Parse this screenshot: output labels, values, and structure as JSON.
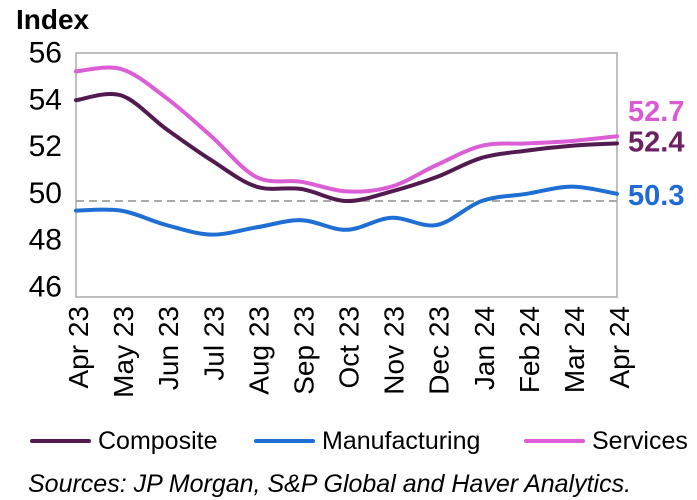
{
  "title": "Index",
  "source": "Sources: JP Morgan, S&P Global and Haver Analytics.",
  "legend": {
    "items": [
      {
        "label": "Composite",
        "color": "#521B50"
      },
      {
        "label": "Manufacturing",
        "color": "#1F6ED4"
      },
      {
        "label": "Services",
        "color": "#DB5ED6"
      }
    ]
  },
  "chart_data": {
    "type": "line",
    "title": "Index",
    "xlabel": "",
    "ylabel": "Index",
    "categories": [
      "Apr 23",
      "May 23",
      "Jun 23",
      "Jul 23",
      "Aug 23",
      "Sep 23",
      "Oct 23",
      "Nov 23",
      "Dec 23",
      "Jan 24",
      "Feb 24",
      "Mar 24",
      "Apr 24"
    ],
    "series": [
      {
        "name": "Composite",
        "color": "#521B50",
        "values": [
          54.2,
          54.4,
          53.0,
          51.7,
          50.6,
          50.5,
          50.0,
          50.4,
          51.0,
          51.8,
          52.1,
          52.3,
          52.4
        ],
        "end_label": "52.4",
        "end_label_color": "#6B2164"
      },
      {
        "name": "Manufacturing",
        "color": "#1F6ED4",
        "values": [
          49.6,
          49.6,
          49.0,
          48.6,
          48.9,
          49.2,
          48.8,
          49.3,
          49.0,
          50.0,
          50.3,
          50.6,
          50.3
        ],
        "end_label": "50.3",
        "end_label_color": "#1E6BD8"
      },
      {
        "name": "Services",
        "color": "#DB5ED6",
        "values": [
          55.4,
          55.5,
          54.3,
          52.7,
          51.0,
          50.8,
          50.4,
          50.6,
          51.5,
          52.3,
          52.4,
          52.5,
          52.7
        ],
        "end_label": "52.7",
        "end_label_color": "#D95AD5"
      }
    ],
    "yticks": [
      46,
      48,
      50,
      52,
      54,
      56
    ],
    "ylim": [
      46,
      56.2
    ],
    "reference_line": 50,
    "reference_line_color": "#AAAAAA",
    "plot_border_color": "#B0B0B0",
    "grid": "off",
    "legend_position": "bottom"
  }
}
